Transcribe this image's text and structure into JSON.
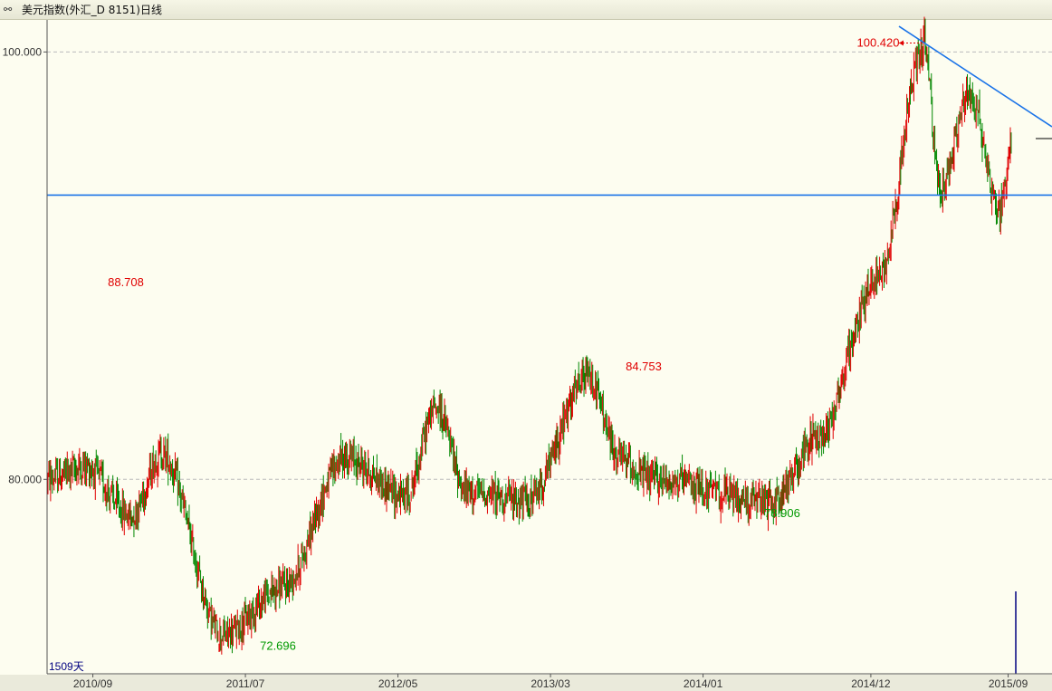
{
  "window": {
    "title": "美元指数(外汇_D 8151)日线",
    "icon": "link-icon"
  },
  "chart_data": {
    "type": "candlestick",
    "ylim": [
      70.9,
      101.5
    ],
    "yticks": [
      {
        "value": 100.0,
        "label": "100.000"
      },
      {
        "value": 80.0,
        "label": "80.000"
      }
    ],
    "xticks": [
      "2010/09",
      "2011/07",
      "2012/05",
      "2013/03",
      "2014/01",
      "2014/12",
      "2015/09"
    ],
    "period_label": "1509天",
    "key_points": [
      {
        "date": "2010/06",
        "value": 80.0
      },
      {
        "date": "2010/08",
        "value": 80.6
      },
      {
        "date": "2010/11",
        "value": 78.3
      },
      {
        "date": "2011/01",
        "value": 81.2
      },
      {
        "date": "2011/05",
        "value": 72.696
      },
      {
        "date": "2011/09",
        "value": 75.0
      },
      {
        "date": "2012/01",
        "value": 81.0
      },
      {
        "date": "2012/05",
        "value": 79.2
      },
      {
        "date": "2012/07",
        "value": 83.4
      },
      {
        "date": "2012/09",
        "value": 79.4
      },
      {
        "date": "2013/01",
        "value": 79.0
      },
      {
        "date": "2013/05",
        "value": 84.753
      },
      {
        "date": "2013/07",
        "value": 81.0
      },
      {
        "date": "2013/09",
        "value": 80.0
      },
      {
        "date": "2014/05",
        "value": 78.906
      },
      {
        "date": "2014/08",
        "value": 82.0
      },
      {
        "date": "2014/12",
        "value": 89.5
      },
      {
        "date": "2015/03",
        "value": 100.42
      },
      {
        "date": "2015/04",
        "value": 93.5
      },
      {
        "date": "2015/06",
        "value": 98.0
      },
      {
        "date": "2015/08",
        "value": 92.5
      },
      {
        "date": "2015/09",
        "value": 95.8
      }
    ],
    "annotations": [
      {
        "label": "88.708",
        "value": 88.708,
        "kind": "high"
      },
      {
        "label": "72.696",
        "value": 72.696,
        "kind": "low"
      },
      {
        "label": "84.753",
        "value": 84.753,
        "kind": "high"
      },
      {
        "label": "78.906",
        "value": 78.906,
        "kind": "low"
      },
      {
        "label": "100.420",
        "value": 100.42,
        "kind": "high"
      }
    ],
    "support_line_value": 93.3,
    "resistance_line": {
      "start_value": 101.2,
      "end_value": 96.5
    },
    "colors": {
      "up": "#e00000",
      "down": "#008800",
      "trendline": "#1a73e8",
      "grid": "#bbbbbb",
      "background": "#fdfdf0",
      "annotation_high": "#e00000",
      "annotation_low": "#009900"
    }
  }
}
